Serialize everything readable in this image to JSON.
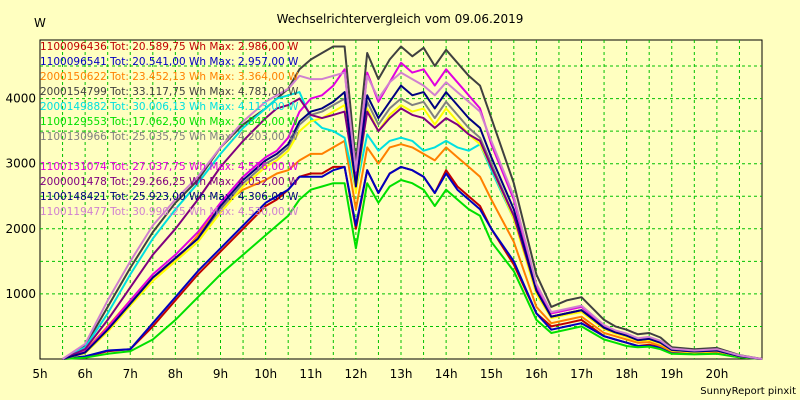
{
  "chart_data": {
    "type": "line",
    "title": "Wechselrichtervergleich vom 09.06.2019",
    "ylabel": "W",
    "xlabel": "",
    "xlim": [
      5,
      21
    ],
    "ylim": [
      0,
      4900
    ],
    "grid": true,
    "legend_position": "top-left",
    "x_ticks": [
      "5h",
      "6h",
      "7h",
      "8h",
      "9h",
      "10h",
      "11h",
      "12h",
      "13h",
      "14h",
      "15h",
      "16h",
      "17h",
      "18h",
      "19h",
      "20h"
    ],
    "y_ticks": [
      1000,
      2000,
      3000,
      4000
    ],
    "x": [
      5.5,
      6,
      6.5,
      7,
      7.5,
      8,
      8.5,
      9,
      9.5,
      10,
      10.25,
      10.5,
      10.75,
      11,
      11.25,
      11.5,
      11.75,
      12,
      12.25,
      12.5,
      12.75,
      13,
      13.25,
      13.5,
      13.75,
      14,
      14.25,
      14.5,
      14.75,
      15,
      15.5,
      16,
      16.33,
      16.67,
      17,
      17.5,
      17.75,
      18,
      18.25,
      18.5,
      18.75,
      19,
      19.5,
      20,
      20.5,
      21
    ],
    "series": [
      {
        "name": "1100096436",
        "label": "1100096436 Tot: 20.589,75 Wh Max: 2.986,00 W",
        "color": "#c00000",
        "values": [
          0,
          30,
          120,
          150,
          500,
          900,
          1300,
          1650,
          2000,
          2350,
          2450,
          2600,
          2800,
          2850,
          2850,
          2950,
          2950,
          2000,
          2900,
          2550,
          2850,
          2950,
          2900,
          2800,
          2550,
          2900,
          2650,
          2500,
          2350,
          2000,
          1450,
          700,
          500,
          550,
          600,
          350,
          300,
          250,
          200,
          220,
          180,
          100,
          80,
          100,
          30,
          0
        ]
      },
      {
        "name": "1100096541",
        "label": "1100096541 Tot: 20.541,00 Wh Max: 2.957,00 W",
        "color": "#0000c0",
        "values": [
          0,
          40,
          130,
          150,
          550,
          950,
          1350,
          1700,
          2050,
          2400,
          2500,
          2600,
          2800,
          2800,
          2800,
          2900,
          2950,
          2050,
          2900,
          2550,
          2850,
          2950,
          2900,
          2800,
          2550,
          2850,
          2600,
          2450,
          2300,
          2000,
          1500,
          700,
          450,
          500,
          550,
          350,
          300,
          250,
          200,
          200,
          180,
          90,
          80,
          90,
          30,
          0
        ]
      },
      {
        "name": "2000150622",
        "label": "2000150622 Tot: 23.452,13 Wh Max: 3.364,00 W",
        "color": "#ff8000",
        "values": [
          0,
          120,
          500,
          900,
          1250,
          1500,
          1900,
          2350,
          2600,
          2750,
          2850,
          2900,
          3050,
          3150,
          3150,
          3250,
          3350,
          2300,
          3250,
          3000,
          3250,
          3300,
          3250,
          3150,
          3050,
          3250,
          3100,
          2950,
          2800,
          2450,
          1800,
          800,
          550,
          600,
          650,
          400,
          350,
          300,
          250,
          260,
          200,
          120,
          100,
          110,
          40,
          0
        ]
      },
      {
        "name": "2000154799",
        "label": "2000154799 Tot: 33.117,75 Wh Max: 4.781,00 W",
        "color": "#404040",
        "values": [
          0,
          200,
          800,
          1400,
          1950,
          2400,
          2750,
          3250,
          3600,
          3850,
          4000,
          4150,
          4450,
          4600,
          4700,
          4800,
          4800,
          3000,
          4700,
          4300,
          4600,
          4800,
          4650,
          4780,
          4500,
          4750,
          4550,
          4350,
          4200,
          3700,
          2700,
          1300,
          800,
          900,
          950,
          600,
          500,
          450,
          380,
          400,
          330,
          180,
          150,
          170,
          60,
          0
        ]
      },
      {
        "name": "2000149882",
        "label": "2000149882 Tot: 30.006,13 Wh Max: 4.113,00 W",
        "color": "#00e0e0",
        "values": [
          0,
          180,
          700,
          1300,
          1850,
          2300,
          2700,
          3150,
          3550,
          3850,
          4000,
          4050,
          4100,
          3700,
          3550,
          3500,
          3400,
          2600,
          3450,
          3200,
          3350,
          3400,
          3350,
          3200,
          3250,
          3350,
          3250,
          3200,
          3300,
          2900,
          2150,
          1050,
          650,
          700,
          750,
          500,
          420,
          370,
          300,
          320,
          260,
          150,
          120,
          140,
          50,
          0
        ]
      },
      {
        "name": "1100129553",
        "label": "1100129553 Tot: 17.062,50 Wh Max: 2.845,00 W",
        "color": "#00e000",
        "values": [
          0,
          20,
          80,
          120,
          300,
          600,
          950,
          1300,
          1600,
          1900,
          2050,
          2200,
          2450,
          2600,
          2650,
          2700,
          2700,
          1700,
          2700,
          2400,
          2650,
          2750,
          2700,
          2600,
          2350,
          2600,
          2450,
          2300,
          2200,
          1800,
          1350,
          600,
          400,
          450,
          500,
          300,
          250,
          200,
          180,
          190,
          150,
          80,
          70,
          80,
          25,
          0
        ]
      },
      {
        "name": "1100130966",
        "label": "1100130966 Tot: 25.035,75 Wh Max: 4.203,00 W",
        "color": "#808080",
        "values": [
          0,
          100,
          450,
          850,
          1250,
          1550,
          1850,
          2300,
          2700,
          3000,
          3100,
          3250,
          3600,
          3750,
          3800,
          3900,
          4000,
          2600,
          3950,
          3600,
          3850,
          4000,
          3900,
          3950,
          3700,
          3950,
          3750,
          3550,
          3400,
          3000,
          2200,
          1050,
          650,
          700,
          750,
          480,
          400,
          350,
          290,
          300,
          250,
          140,
          110,
          130,
          45,
          0
        ]
      },
      {
        "name": "",
        "label": "",
        "color": "#ffff00",
        "values": [
          0,
          90,
          420,
          820,
          1200,
          1500,
          1800,
          2250,
          2650,
          2950,
          3050,
          3200,
          3500,
          3650,
          3700,
          3800,
          3900,
          2550,
          3850,
          3500,
          3750,
          3900,
          3800,
          3850,
          3600,
          3850,
          3650,
          3450,
          3300,
          2950,
          2150,
          1000,
          630,
          680,
          720,
          460,
          390,
          340,
          280,
          290,
          240,
          130,
          105,
          125,
          40,
          0
        ]
      },
      {
        "name": "1100131074",
        "label": "1100131074 Tot: 27.037,75 Wh Max: 4.576,00 W",
        "color": "#e000e0",
        "values": [
          0,
          110,
          480,
          900,
          1300,
          1600,
          1950,
          2400,
          2800,
          3100,
          3200,
          3400,
          3800,
          4000,
          4050,
          4200,
          4450,
          2700,
          4400,
          3950,
          4250,
          4550,
          4400,
          4450,
          4200,
          4450,
          4250,
          4050,
          3850,
          3300,
          2450,
          1100,
          700,
          750,
          800,
          500,
          430,
          380,
          310,
          330,
          270,
          150,
          120,
          140,
          50,
          0
        ]
      },
      {
        "name": "2000001478",
        "label": "2000001478 Tot: 29.266,25 Wh Max: 4.052,00 W",
        "color": "#800080",
        "values": [
          0,
          150,
          600,
          1100,
          1600,
          2000,
          2450,
          2950,
          3350,
          3700,
          3850,
          3900,
          4000,
          3750,
          3700,
          3750,
          3800,
          2700,
          3800,
          3500,
          3700,
          3850,
          3750,
          3700,
          3550,
          3700,
          3600,
          3450,
          3350,
          2950,
          2200,
          1050,
          650,
          700,
          750,
          480,
          410,
          360,
          290,
          310,
          250,
          140,
          115,
          130,
          45,
          0
        ]
      },
      {
        "name": "1100148421",
        "label": "1100148421 Tot: 25.923,00 Wh Max: 4.306,00 W",
        "color": "#000080",
        "values": [
          0,
          100,
          450,
          850,
          1250,
          1550,
          1850,
          2350,
          2750,
          3050,
          3150,
          3300,
          3650,
          3800,
          3850,
          3950,
          4100,
          2650,
          4050,
          3700,
          3950,
          4200,
          4050,
          4100,
          3850,
          4100,
          3900,
          3700,
          3550,
          3100,
          2300,
          1050,
          650,
          700,
          750,
          480,
          410,
          360,
          290,
          310,
          250,
          140,
          115,
          130,
          45,
          0
        ]
      },
      {
        "name": "1100119477",
        "label": "1100119477 Tot: 30.990,25 Wh Max: 4.530,00 W",
        "color": "#d080d0",
        "values": [
          0,
          230,
          900,
          1500,
          2050,
          2450,
          2800,
          3250,
          3650,
          3950,
          4050,
          4150,
          4350,
          4300,
          4300,
          4350,
          4400,
          2900,
          4350,
          4000,
          4250,
          4400,
          4300,
          4200,
          4050,
          4250,
          4100,
          3950,
          3800,
          3350,
          2500,
          1150,
          720,
          770,
          820,
          520,
          440,
          390,
          320,
          340,
          280,
          160,
          130,
          150,
          55,
          0
        ]
      }
    ]
  },
  "credit": "SunnyReport pinxit"
}
